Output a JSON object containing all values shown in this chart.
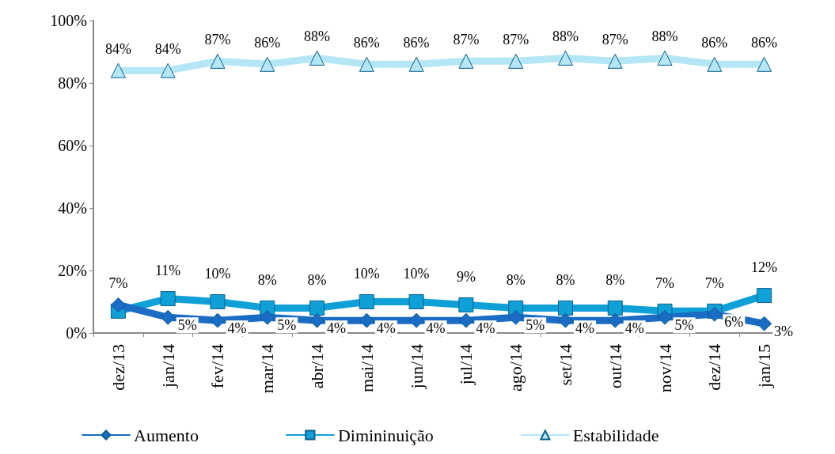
{
  "chart_data": {
    "type": "line",
    "categories": [
      "dez/13",
      "jan/14",
      "fev/14",
      "mar/14",
      "abr/14",
      "mai/14",
      "jun/14",
      "jul/14",
      "ago/14",
      "set/14",
      "out/14",
      "nov/14",
      "dez/14",
      "jan/15"
    ],
    "series": [
      {
        "name": "Aumento",
        "color": "#1a6cc4",
        "marker": "diamond",
        "values": [
          9,
          5,
          4,
          5,
          4,
          4,
          4,
          4,
          5,
          4,
          4,
          5,
          6,
          3
        ],
        "value_labels": [
          null,
          "5%",
          "4%",
          "5%",
          "4%",
          "4%",
          "4%",
          "4%",
          "5%",
          "4%",
          "4%",
          "5%",
          "6%",
          "3%"
        ]
      },
      {
        "name": "Dimininuição",
        "color": "#0fa0d8",
        "marker": "square",
        "values": [
          7,
          11,
          10,
          8,
          8,
          10,
          10,
          9,
          8,
          8,
          8,
          7,
          7,
          12
        ],
        "value_labels": [
          "7%",
          "11%",
          "10%",
          "8%",
          "8%",
          "10%",
          "10%",
          "9%",
          "8%",
          "8%",
          "8%",
          "7%",
          "7%",
          "12%"
        ]
      },
      {
        "name": "Estabilidade",
        "color": "#b5e6f6",
        "marker": "triangle",
        "values": [
          84,
          84,
          87,
          86,
          88,
          86,
          86,
          87,
          87,
          88,
          87,
          88,
          86,
          86
        ],
        "value_labels": [
          "84%",
          "84%",
          "87%",
          "86%",
          "88%",
          "86%",
          "86%",
          "87%",
          "87%",
          "88%",
          "87%",
          "88%",
          "86%",
          "86%"
        ]
      }
    ],
    "ylim": [
      0,
      100
    ],
    "yticks": [
      {
        "value": 0,
        "label": "0%"
      },
      {
        "value": 20,
        "label": "20%"
      },
      {
        "value": 40,
        "label": "40%"
      },
      {
        "value": 60,
        "label": "60%"
      },
      {
        "value": 80,
        "label": "80%"
      },
      {
        "value": 100,
        "label": "100%"
      }
    ],
    "grid": false,
    "legend": "bottom",
    "line_style": "solid"
  }
}
